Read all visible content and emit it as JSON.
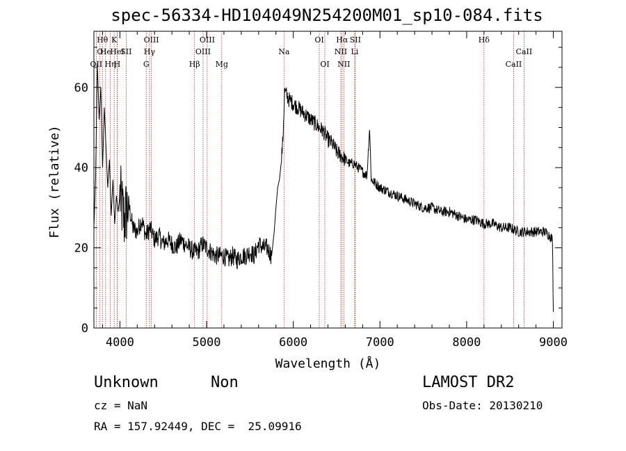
{
  "chart_data": {
    "type": "line",
    "title": "spec-56334-HD104049N254200M01_sp10-084.fits",
    "xlabel": "Wavelength (Å)",
    "ylabel": "Flux (relative)",
    "xlim": [
      3700,
      9100
    ],
    "ylim": [
      0,
      74
    ],
    "x_ticks": [
      4000,
      5000,
      6000,
      7000,
      8000,
      9000
    ],
    "y_ticks": [
      0,
      20,
      40,
      60
    ],
    "grid": false,
    "series": [
      {
        "color": "#000000",
        "x": [
          3700,
          3720,
          3740,
          3760,
          3780,
          3800,
          3820,
          3840,
          3860,
          3880,
          3900,
          3920,
          3940,
          3960,
          3980,
          4000,
          4050,
          4100,
          4150,
          4200,
          4250,
          4300,
          4350,
          4400,
          4450,
          4500,
          4550,
          4600,
          4650,
          4700,
          4750,
          4800,
          4850,
          4900,
          4950,
          5000,
          5050,
          5100,
          5150,
          5200,
          5250,
          5300,
          5350,
          5400,
          5450,
          5500,
          5550,
          5600,
          5650,
          5700,
          5750,
          5780,
          5800,
          5820,
          5840,
          5860,
          5880,
          5900,
          5950,
          6000,
          6050,
          6100,
          6150,
          6200,
          6250,
          6300,
          6350,
          6400,
          6450,
          6500,
          6550,
          6600,
          6650,
          6700,
          6750,
          6800,
          6850,
          6880,
          6900,
          6950,
          7000,
          7100,
          7200,
          7300,
          7400,
          7500,
          7600,
          7700,
          7800,
          7900,
          8000,
          8100,
          8200,
          8300,
          8400,
          8500,
          8600,
          8700,
          8800,
          8900,
          8960,
          8990,
          9000
        ],
        "y": [
          25,
          38,
          66,
          52,
          60,
          40,
          55,
          45,
          35,
          42,
          28,
          37,
          26,
          33,
          29,
          33,
          27,
          31,
          25,
          24,
          27,
          23,
          25,
          22,
          23,
          21,
          22,
          21,
          20,
          22,
          21,
          20,
          19,
          19,
          21,
          20,
          19,
          18,
          18,
          18,
          17,
          18,
          17,
          18,
          18,
          19,
          18,
          21,
          20,
          20,
          18,
          24,
          30,
          35,
          37,
          41,
          47,
          59,
          57,
          56,
          55,
          54,
          53,
          52,
          51,
          50,
          49,
          47,
          46,
          44,
          43,
          42,
          41,
          41,
          40,
          39,
          38,
          50,
          37,
          36,
          35,
          34,
          33,
          32,
          31,
          30,
          30,
          29,
          29,
          28,
          27,
          27,
          26,
          26,
          25,
          25,
          24,
          24,
          24,
          24,
          23,
          22,
          4
        ]
      }
    ],
    "lines": [
      {
        "x": 3727,
        "label": "OII",
        "row": 2
      },
      {
        "x": 3770,
        "label": "O",
        "row": 1
      },
      {
        "x": 3798,
        "label": "Hθ",
        "row": 0
      },
      {
        "x": 3835,
        "label": "He",
        "row": 1
      },
      {
        "x": 3889,
        "label": "Hη",
        "row": 2
      },
      {
        "x": 3934,
        "label": "K",
        "row": 0
      },
      {
        "x": 3968,
        "label": "H",
        "row": 2
      },
      {
        "x": 3970,
        "label": "HeI",
        "row": 1
      },
      {
        "x": 4072,
        "label": "SII",
        "row": 1
      },
      {
        "x": 4304,
        "label": "G",
        "row": 2
      },
      {
        "x": 4341,
        "label": "Hγ",
        "row": 1
      },
      {
        "x": 4363,
        "label": "OIII",
        "row": 0
      },
      {
        "x": 4861,
        "label": "Hβ",
        "row": 2
      },
      {
        "x": 4959,
        "label": "OIII",
        "row": 1
      },
      {
        "x": 5007,
        "label": "OIII",
        "row": 0
      },
      {
        "x": 5175,
        "label": "Mg",
        "row": 2
      },
      {
        "x": 5893,
        "label": "Na",
        "row": 1
      },
      {
        "x": 6300,
        "label": "OI",
        "row": 0
      },
      {
        "x": 6364,
        "label": "OI",
        "row": 2
      },
      {
        "x": 6548,
        "label": "NII",
        "row": 1
      },
      {
        "x": 6563,
        "label": "Hα",
        "row": 0
      },
      {
        "x": 6583,
        "label": "NII",
        "row": 2
      },
      {
        "x": 6708,
        "label": "Li",
        "row": 1
      },
      {
        "x": 6716,
        "label": "SII",
        "row": 0
      },
      {
        "x": 8200,
        "label": "Hδ",
        "row": 0
      },
      {
        "x": 8542,
        "label": "CaII",
        "row": 2
      },
      {
        "x": 8662,
        "label": "CaII",
        "row": 1
      }
    ]
  },
  "info": {
    "obj_class": "Unknown",
    "obj_subclass": "Non",
    "survey": "LAMOST DR2",
    "cz": "cz = NaN",
    "obs_date": "Obs-Date: 20130210",
    "radec": "RA = 157.92449, DEC =  25.09916"
  }
}
